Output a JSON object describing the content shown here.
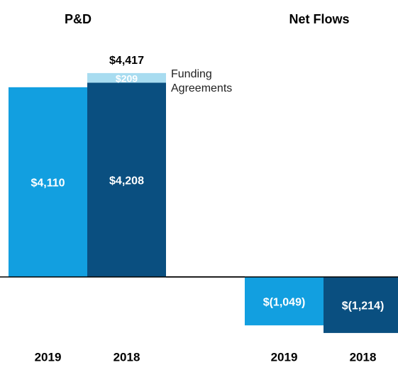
{
  "chart_data": [
    {
      "type": "bar",
      "title": "P&D",
      "categories": [
        "2019",
        "2018"
      ],
      "ylim": [
        -1600,
        5000
      ],
      "series": [
        {
          "colors": [
            "#129fe0",
            "#0a4f80"
          ],
          "values": [
            4110,
            4208
          ],
          "value_labels": [
            "$4,110",
            "$4,208"
          ]
        },
        {
          "name": "Funding Agreements",
          "color": "#a8dcf0",
          "values": [
            null,
            209
          ],
          "value_labels": [
            null,
            "$209"
          ]
        }
      ],
      "totals": [
        null,
        4417
      ],
      "total_labels": [
        null,
        "$4,417"
      ]
    },
    {
      "type": "bar",
      "title": "Net Flows",
      "categories": [
        "2019",
        "2018"
      ],
      "ylim": [
        -1600,
        5000
      ],
      "series": [
        {
          "colors": [
            "#129fe0",
            "#0a4f80"
          ],
          "values": [
            -1049,
            -1214
          ],
          "value_labels": [
            "$(1,049)",
            "$(1,214)"
          ]
        }
      ]
    }
  ]
}
